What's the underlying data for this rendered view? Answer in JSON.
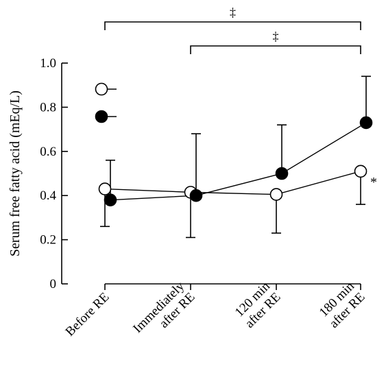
{
  "chart_data": {
    "type": "line",
    "ylabel": "Serum free fatty acid (mEq/L)",
    "ylim": [
      0,
      1.0
    ],
    "y_ticks": [
      {
        "value": 0,
        "label": "0"
      },
      {
        "value": 0.2,
        "label": "0.2"
      },
      {
        "value": 0.4,
        "label": "0.4"
      },
      {
        "value": 0.6,
        "label": "0.6"
      },
      {
        "value": 0.8,
        "label": "0.8"
      },
      {
        "value": 1.0,
        "label": "1.0"
      }
    ],
    "categories": [
      {
        "lines": [
          "Before RE"
        ]
      },
      {
        "lines": [
          "Immediately",
          "after RE"
        ]
      },
      {
        "lines": [
          "120 min",
          "after RE"
        ]
      },
      {
        "lines": [
          "180 min",
          "after RE"
        ]
      }
    ],
    "series": [
      {
        "marker": "open-circle",
        "values": [
          0.43,
          0.415,
          0.405,
          0.51
        ],
        "error": [
          {
            "low": 0.26,
            "high": null
          },
          {
            "low": 0.21,
            "high": null
          },
          {
            "low": 0.23,
            "high": null
          },
          {
            "low": 0.36,
            "high": null
          }
        ]
      },
      {
        "marker": "filled-circle",
        "values": [
          0.38,
          0.4,
          0.5,
          0.73
        ],
        "error": [
          {
            "low": null,
            "high": 0.56
          },
          {
            "low": null,
            "high": 0.68
          },
          {
            "low": null,
            "high": 0.72
          },
          {
            "low": null,
            "high": 0.94
          }
        ]
      }
    ],
    "legend": {
      "placement": "top-left",
      "entries": [
        {
          "marker": "open-circle"
        },
        {
          "marker": "filled-circle"
        }
      ]
    },
    "significance_brackets": [
      {
        "from": 0,
        "to": 3,
        "label": "‡"
      },
      {
        "from": 1,
        "to": 3,
        "label": "‡"
      }
    ],
    "annotations": [
      {
        "series": 0,
        "category": 3,
        "text": "*"
      }
    ],
    "colors": {
      "line": "#000000",
      "open_fill": "#ffffff",
      "filled_fill": "#000000"
    }
  }
}
